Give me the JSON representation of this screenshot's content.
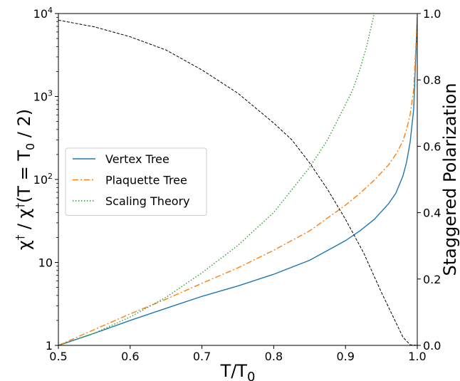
{
  "chart_data": {
    "type": "line",
    "xlabel": "T/T0",
    "ylabel_left": "χ† / χ†(T = T0 / 2)",
    "ylabel_right": "Staggered Polarization",
    "x_range": [
      0.5,
      1.0
    ],
    "y_left_range": [
      1,
      10000
    ],
    "y_left_scale": "log",
    "y_right_range": [
      0.0,
      1.0
    ],
    "x_ticks": [
      "0.5",
      "0.6",
      "0.7",
      "0.8",
      "0.9",
      "1.0"
    ],
    "y_left_ticks": [
      {
        "value": 1,
        "base": "1",
        "exp": ""
      },
      {
        "value": 10,
        "base": "10",
        "exp": ""
      },
      {
        "value": 100,
        "base": "10",
        "exp": "2"
      },
      {
        "value": 1000,
        "base": "10",
        "exp": "3"
      },
      {
        "value": 10000,
        "base": "10",
        "exp": "4"
      }
    ],
    "y_right_ticks": [
      "0.0",
      "0.2",
      "0.4",
      "0.6",
      "0.8",
      "1.0"
    ],
    "grid": false,
    "legend_position": "center-left",
    "series": [
      {
        "name": "Vertex Tree",
        "axis": "left",
        "color": "#1f77b4",
        "style": "solid",
        "x": [
          0.5,
          0.55,
          0.6,
          0.65,
          0.7,
          0.75,
          0.8,
          0.85,
          0.9,
          0.92,
          0.94,
          0.96,
          0.97,
          0.98,
          0.985,
          0.99,
          0.995,
          1.0
        ],
        "y": [
          1.0,
          1.4,
          2.0,
          2.8,
          3.9,
          5.2,
          7.2,
          10.6,
          18.3,
          24.0,
          33.0,
          51.0,
          68.0,
          110.0,
          160.0,
          280.0,
          700.0,
          9000.0
        ]
      },
      {
        "name": "Plaquette Tree",
        "axis": "left",
        "color": "#ff7f0e",
        "style": "dashdot",
        "x": [
          0.5,
          0.55,
          0.6,
          0.65,
          0.7,
          0.75,
          0.8,
          0.85,
          0.9,
          0.92,
          0.94,
          0.96,
          0.97,
          0.98,
          0.985,
          0.99,
          0.995,
          1.0
        ],
        "y": [
          1.0,
          1.55,
          2.4,
          3.6,
          5.6,
          8.6,
          14.0,
          24.0,
          49.0,
          68.0,
          98.0,
          150.0,
          200.0,
          290.0,
          400.0,
          600.0,
          1200.0,
          9000.0
        ]
      },
      {
        "name": "Scaling Theory",
        "axis": "left",
        "color": "#2ca02c",
        "style": "dotted",
        "x": [
          0.5,
          0.55,
          0.6,
          0.65,
          0.7,
          0.75,
          0.8,
          0.85,
          0.875,
          0.9,
          0.91,
          0.92,
          0.93,
          0.94
        ],
        "y": [
          1.0,
          1.4,
          2.2,
          3.8,
          7.5,
          16.0,
          40.0,
          140.0,
          300.0,
          800.0,
          1200.0,
          2100.0,
          4200.0,
          10000.0
        ]
      },
      {
        "name": "",
        "axis": "right",
        "color": "#000000",
        "style": "dashed",
        "x": [
          0.5,
          0.55,
          0.6,
          0.65,
          0.7,
          0.75,
          0.8,
          0.825,
          0.85,
          0.875,
          0.9,
          0.925,
          0.95,
          0.97,
          0.98,
          0.99,
          1.0
        ],
        "y": [
          0.98,
          0.96,
          0.93,
          0.89,
          0.83,
          0.76,
          0.67,
          0.62,
          0.55,
          0.47,
          0.38,
          0.28,
          0.16,
          0.07,
          0.025,
          0.002,
          0.0
        ]
      }
    ]
  }
}
